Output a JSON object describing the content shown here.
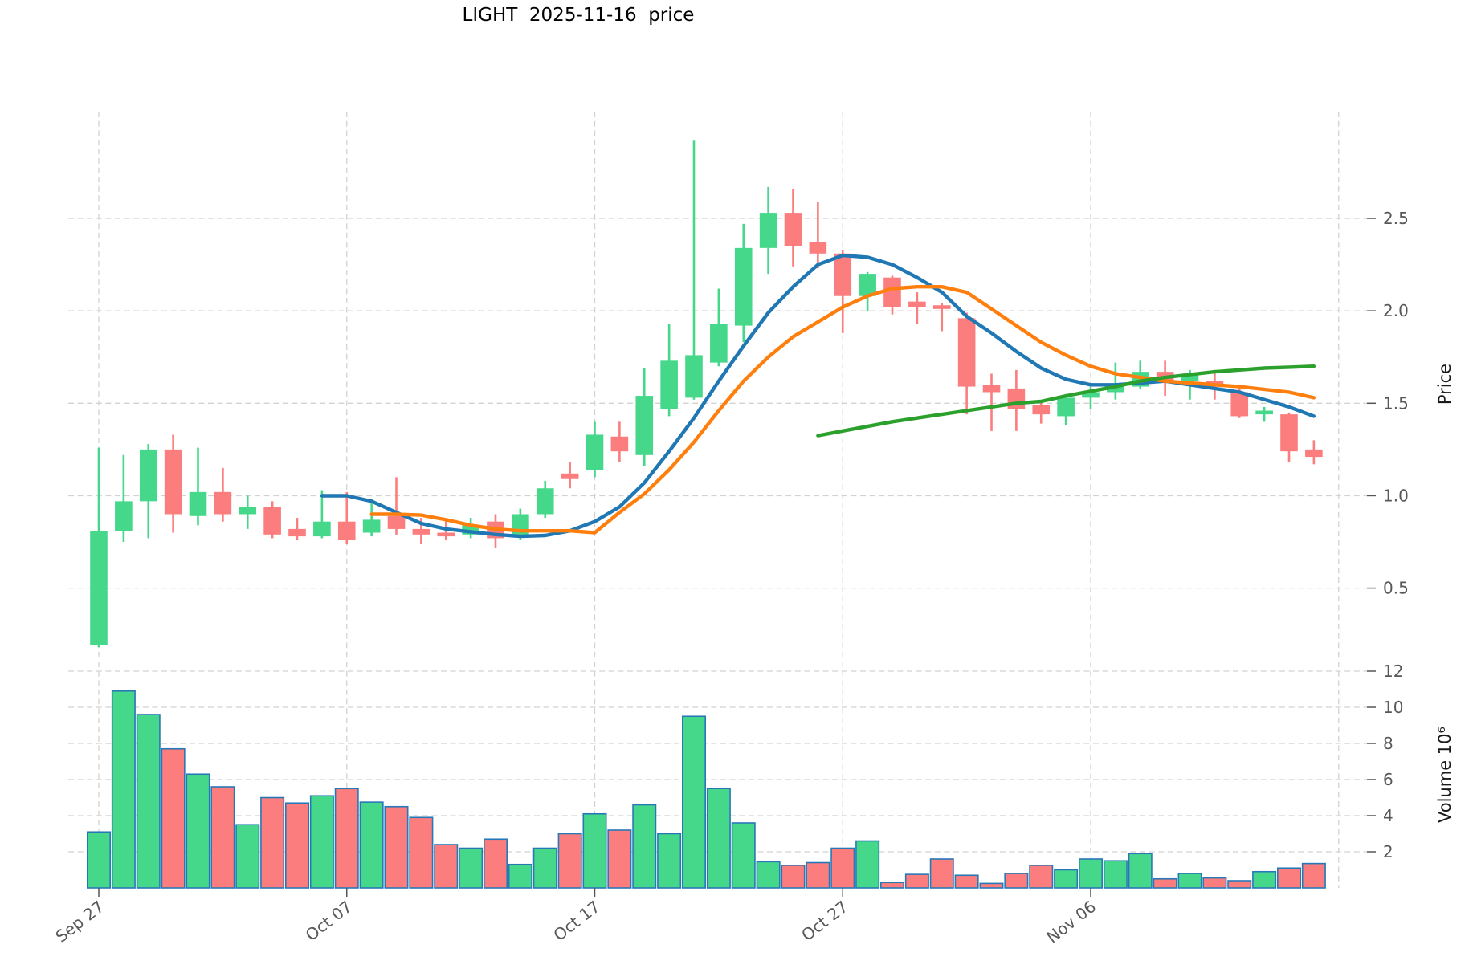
{
  "title": "LIGHT  2025-11-16  price",
  "price_axis": {
    "label": "Price",
    "ticks": [
      0.5,
      1.0,
      1.5,
      2.0,
      2.5
    ]
  },
  "volume_axis": {
    "label": "Volume  10⁶",
    "ticks": [
      2,
      4,
      6,
      8,
      10,
      12
    ]
  },
  "x_axis": {
    "tick_labels": [
      "Sep 27",
      "Oct 07",
      "Oct 17",
      "Oct 27",
      "Nov 06"
    ],
    "tick_indices": [
      0,
      10,
      20,
      30,
      40
    ],
    "extra_gridline_index": 50
  },
  "colors": {
    "up": "#45d88b",
    "down": "#fb7d7d",
    "volume_edge": "#2878b8",
    "ma_short": "#1f77b4",
    "ma_medium": "#ff7f0e",
    "ma_long": "#2ca02c",
    "grid": "#d2d2d2",
    "tick_text": "#585858",
    "title_text": "#000000"
  },
  "chart_data": {
    "type": "candlestick",
    "title": "LIGHT  2025-11-16  price",
    "ylabel": "Price",
    "ylabel_lower": "Volume  10⁶",
    "grid": true,
    "price_ylim": [
      0.13,
      3.08
    ],
    "volume_ylim": [
      0,
      12.5
    ],
    "price_ticks": [
      0.5,
      1.0,
      1.5,
      2.0,
      2.5
    ],
    "volume_ticks_millions": [
      2,
      4,
      6,
      8,
      10,
      12
    ],
    "x_tick_labels": [
      "Sep 27",
      "Oct 07",
      "Oct 17",
      "Oct 27",
      "Nov 06"
    ],
    "x_tick_indices": [
      0,
      10,
      20,
      30,
      40
    ],
    "dates": [
      "2025-09-27",
      "2025-09-28",
      "2025-09-29",
      "2025-09-30",
      "2025-10-01",
      "2025-10-02",
      "2025-10-03",
      "2025-10-04",
      "2025-10-05",
      "2025-10-06",
      "2025-10-07",
      "2025-10-08",
      "2025-10-09",
      "2025-10-10",
      "2025-10-11",
      "2025-10-12",
      "2025-10-13",
      "2025-10-14",
      "2025-10-15",
      "2025-10-16",
      "2025-10-17",
      "2025-10-18",
      "2025-10-19",
      "2025-10-20",
      "2025-10-21",
      "2025-10-22",
      "2025-10-23",
      "2025-10-24",
      "2025-10-25",
      "2025-10-26",
      "2025-10-27",
      "2025-10-28",
      "2025-10-29",
      "2025-10-30",
      "2025-10-31",
      "2025-11-01",
      "2025-11-02",
      "2025-11-03",
      "2025-11-04",
      "2025-11-05",
      "2025-11-06",
      "2025-11-07",
      "2025-11-08",
      "2025-11-09",
      "2025-11-10",
      "2025-11-11",
      "2025-11-12",
      "2025-11-13",
      "2025-11-14",
      "2025-11-15"
    ],
    "ohlc_columns": [
      "open",
      "high",
      "low",
      "close"
    ],
    "ohlc": [
      [
        0.19,
        1.26,
        0.18,
        0.81
      ],
      [
        0.81,
        1.22,
        0.75,
        0.97
      ],
      [
        0.97,
        1.28,
        0.77,
        1.25
      ],
      [
        1.25,
        1.33,
        0.8,
        0.9
      ],
      [
        0.89,
        1.26,
        0.84,
        1.02
      ],
      [
        1.02,
        1.15,
        0.86,
        0.9
      ],
      [
        0.9,
        1.0,
        0.82,
        0.94
      ],
      [
        0.94,
        0.97,
        0.77,
        0.79
      ],
      [
        0.82,
        0.88,
        0.76,
        0.78
      ],
      [
        0.78,
        1.03,
        0.77,
        0.86
      ],
      [
        0.86,
        1.02,
        0.74,
        0.76
      ],
      [
        0.8,
        0.98,
        0.78,
        0.87
      ],
      [
        0.89,
        1.1,
        0.79,
        0.82
      ],
      [
        0.82,
        0.88,
        0.74,
        0.79
      ],
      [
        0.8,
        0.87,
        0.76,
        0.78
      ],
      [
        0.79,
        0.88,
        0.77,
        0.84
      ],
      [
        0.86,
        0.9,
        0.72,
        0.77
      ],
      [
        0.78,
        0.93,
        0.76,
        0.9
      ],
      [
        0.9,
        1.08,
        0.88,
        1.04
      ],
      [
        1.12,
        1.18,
        1.04,
        1.09
      ],
      [
        1.14,
        1.4,
        1.1,
        1.33
      ],
      [
        1.32,
        1.4,
        1.18,
        1.24
      ],
      [
        1.22,
        1.69,
        1.16,
        1.54
      ],
      [
        1.47,
        1.93,
        1.43,
        1.73
      ],
      [
        1.53,
        2.92,
        1.52,
        1.76
      ],
      [
        1.72,
        2.12,
        1.7,
        1.93
      ],
      [
        1.92,
        2.47,
        1.83,
        2.34
      ],
      [
        2.34,
        2.67,
        2.2,
        2.53
      ],
      [
        2.53,
        2.66,
        2.24,
        2.35
      ],
      [
        2.37,
        2.59,
        2.23,
        2.31
      ],
      [
        2.31,
        2.33,
        1.88,
        2.08
      ],
      [
        2.08,
        2.21,
        2.0,
        2.2
      ],
      [
        2.18,
        2.19,
        1.98,
        2.02
      ],
      [
        2.05,
        2.1,
        1.93,
        2.02
      ],
      [
        2.03,
        2.04,
        1.89,
        2.01
      ],
      [
        1.96,
        1.99,
        1.44,
        1.59
      ],
      [
        1.6,
        1.66,
        1.35,
        1.56
      ],
      [
        1.58,
        1.68,
        1.35,
        1.47
      ],
      [
        1.49,
        1.51,
        1.39,
        1.44
      ],
      [
        1.43,
        1.55,
        1.38,
        1.53
      ],
      [
        1.53,
        1.59,
        1.47,
        1.56
      ],
      [
        1.56,
        1.72,
        1.52,
        1.59
      ],
      [
        1.59,
        1.73,
        1.58,
        1.67
      ],
      [
        1.67,
        1.73,
        1.54,
        1.61
      ],
      [
        1.62,
        1.68,
        1.52,
        1.66
      ],
      [
        1.62,
        1.68,
        1.52,
        1.59
      ],
      [
        1.56,
        1.6,
        1.42,
        1.43
      ],
      [
        1.44,
        1.48,
        1.4,
        1.46
      ],
      [
        1.44,
        1.45,
        1.18,
        1.24
      ],
      [
        1.25,
        1.3,
        1.17,
        1.21
      ]
    ],
    "volume_millions": [
      3.1,
      10.9,
      9.6,
      7.7,
      6.3,
      5.6,
      3.5,
      5.0,
      4.7,
      5.1,
      5.5,
      4.75,
      4.5,
      3.9,
      2.4,
      2.2,
      2.7,
      1.3,
      2.2,
      3.0,
      4.1,
      3.2,
      4.6,
      3.0,
      9.5,
      5.5,
      3.6,
      1.45,
      1.25,
      1.4,
      2.2,
      2.6,
      0.3,
      0.75,
      1.6,
      0.7,
      0.25,
      0.8,
      1.25,
      1.0,
      1.6,
      1.5,
      1.9,
      0.5,
      0.8,
      0.55,
      0.4,
      0.9,
      1.1,
      1.35
    ],
    "moving_averages": [
      {
        "name": "ma-short",
        "color": "#1f77b4",
        "start_index": 9,
        "values": [
          1.0,
          1.0,
          0.97,
          0.91,
          0.85,
          0.82,
          0.805,
          0.79,
          0.78,
          0.785,
          0.81,
          0.86,
          0.94,
          1.07,
          1.24,
          1.42,
          1.62,
          1.81,
          1.99,
          2.13,
          2.25,
          2.3,
          2.29,
          2.25,
          2.18,
          2.1,
          1.97,
          1.88,
          1.78,
          1.69,
          1.63,
          1.6,
          1.6,
          1.61,
          1.62,
          1.6,
          1.58,
          1.56,
          1.52,
          1.48,
          1.43
        ]
      },
      {
        "name": "ma-medium",
        "color": "#ff7f0e",
        "start_index": 11,
        "values": [
          0.9,
          0.9,
          0.895,
          0.87,
          0.84,
          0.82,
          0.81,
          0.81,
          0.81,
          0.8,
          0.91,
          1.01,
          1.14,
          1.29,
          1.46,
          1.62,
          1.75,
          1.86,
          1.94,
          2.02,
          2.08,
          2.12,
          2.13,
          2.13,
          2.1,
          2.01,
          1.92,
          1.83,
          1.76,
          1.7,
          1.66,
          1.64,
          1.62,
          1.61,
          1.6,
          1.59,
          1.575,
          1.56,
          1.53
        ]
      },
      {
        "name": "ma-long",
        "color": "#2ca02c",
        "start_index": 29,
        "values": [
          1.325,
          1.35,
          1.375,
          1.4,
          1.42,
          1.44,
          1.46,
          1.48,
          1.5,
          1.51,
          1.54,
          1.565,
          1.59,
          1.62,
          1.64,
          1.655,
          1.67,
          1.68,
          1.69,
          1.695,
          1.7
        ]
      }
    ]
  }
}
